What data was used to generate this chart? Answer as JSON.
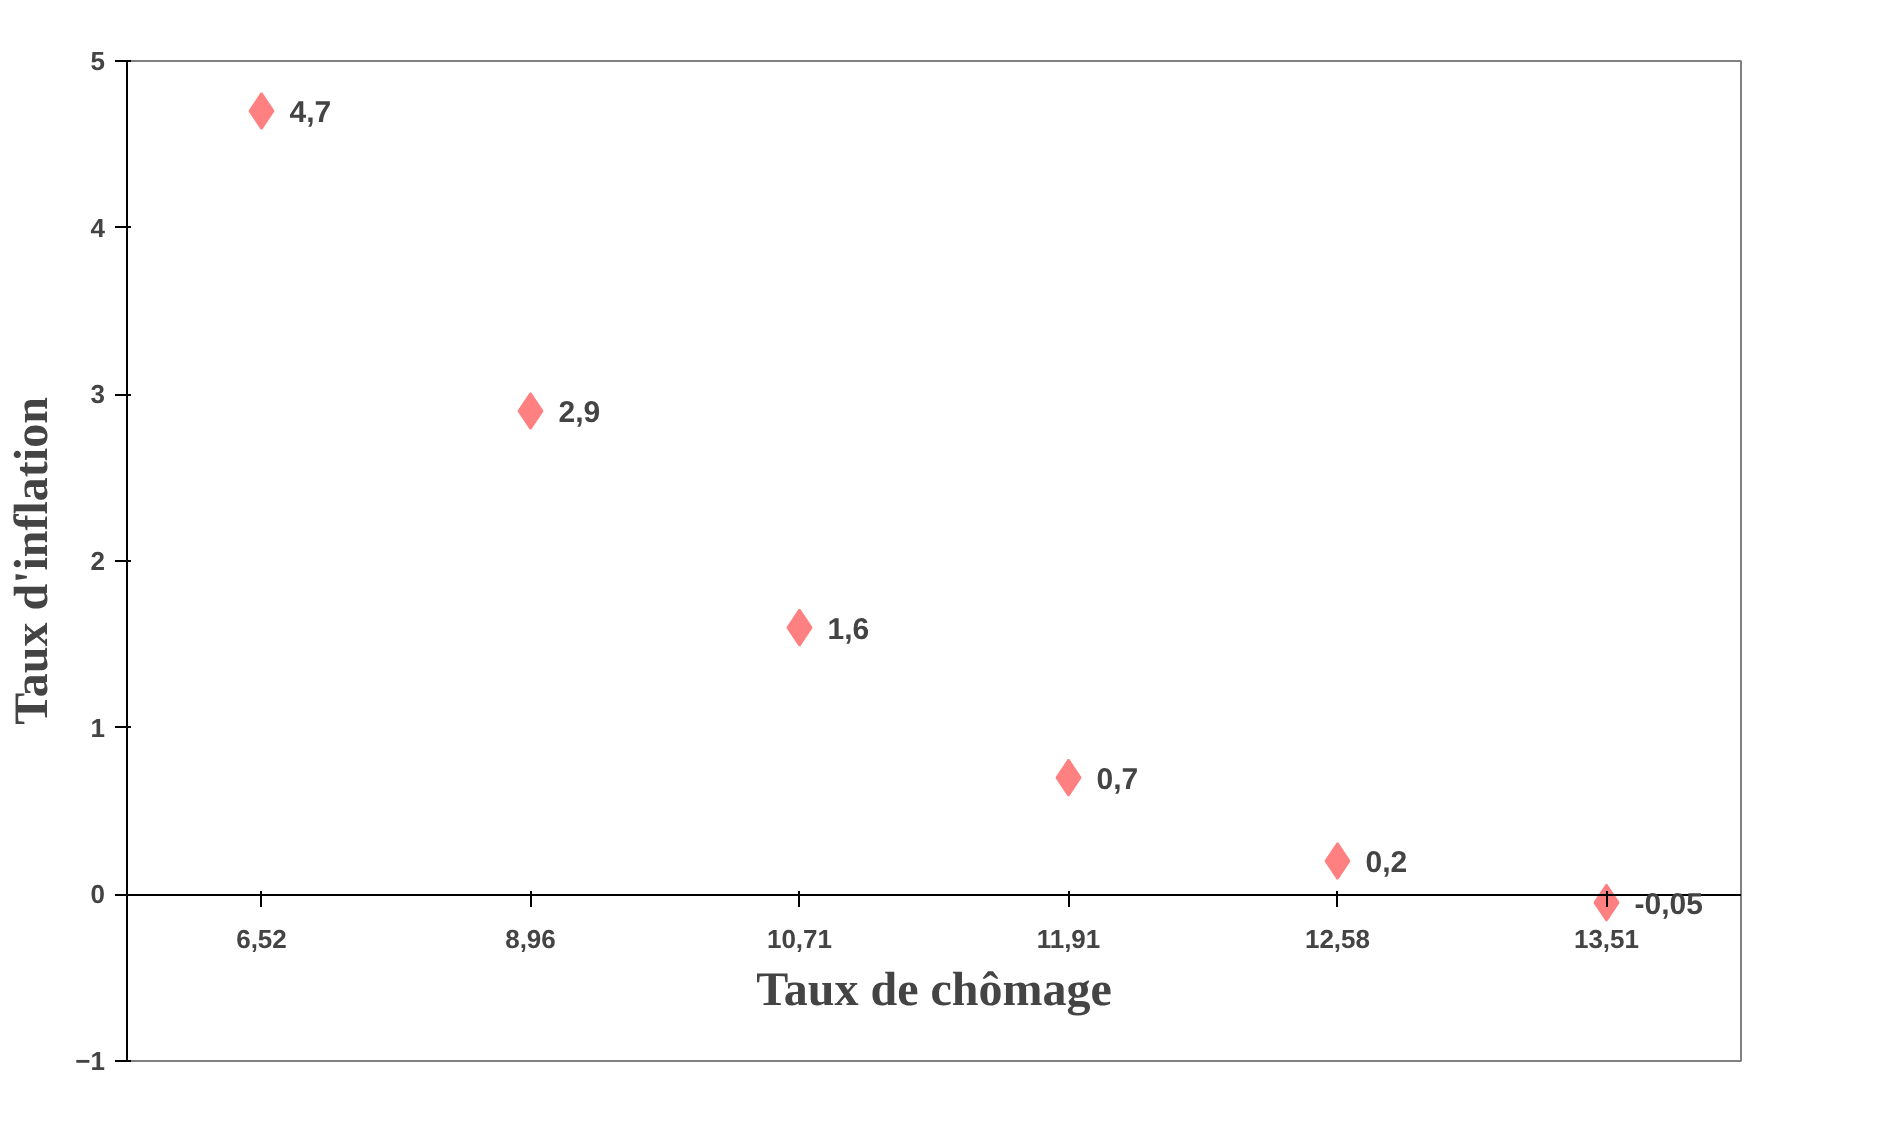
{
  "chart_data": {
    "type": "scatter",
    "xlabel": "Taux de chômage",
    "ylabel": "Taux d'inflation",
    "categories": [
      "6,52",
      "8,96",
      "10,71",
      "11,91",
      "12,58",
      "13,51"
    ],
    "series": [
      {
        "color": "#ff8080",
        "values": [
          4.7,
          2.9,
          1.6,
          0.7,
          0.2,
          -0.05
        ]
      }
    ],
    "ylim": [
      -1,
      5
    ],
    "yticks": [
      -1,
      0,
      1,
      2,
      3,
      4,
      5
    ],
    "grid": false,
    "marker": "diamond",
    "value_labels": [
      "4,7",
      "2,9",
      "1,6",
      "0,7",
      "0,2",
      "-0,05"
    ]
  }
}
